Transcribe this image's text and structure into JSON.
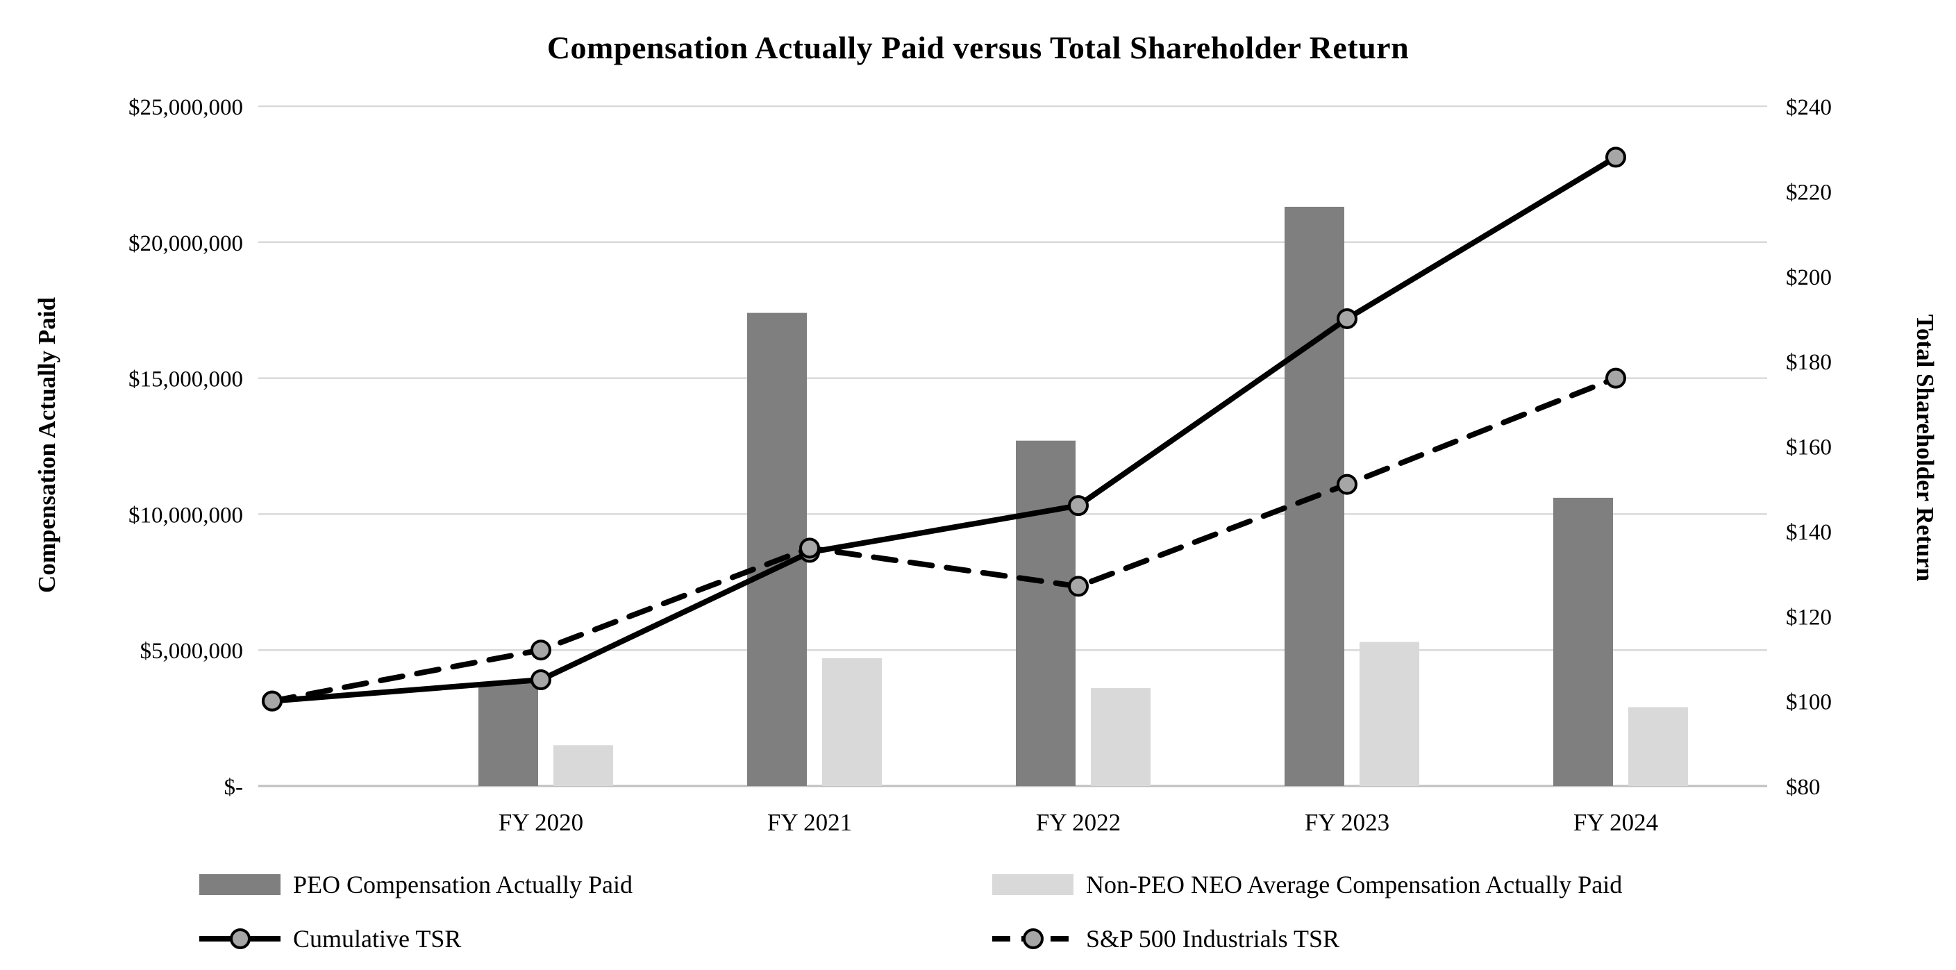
{
  "chart_data": {
    "type": "combo",
    "title": "Compensation Actually Paid versus Total Shareholder Return",
    "categories": [
      "",
      "FY 2020",
      "FY 2021",
      "FY 2022",
      "FY 2023",
      "FY 2024"
    ],
    "bar_series": [
      {
        "name": "PEO Compensation Actually Paid",
        "color": "#7f7f7f",
        "axis": "left",
        "values": [
          null,
          3800000,
          17400000,
          12700000,
          21300000,
          10600000
        ]
      },
      {
        "name": "Non-PEO NEO Average Compensation Actually Paid",
        "color": "#d9d9d9",
        "axis": "left",
        "values": [
          null,
          1500000,
          4700000,
          3600000,
          5300000,
          2900000
        ]
      }
    ],
    "line_series": [
      {
        "name": "Cumulative TSR",
        "style": "solid",
        "color": "#000000",
        "marker_fill": "#a6a6a6",
        "axis": "right",
        "values": [
          100,
          105,
          135,
          146,
          190,
          228
        ]
      },
      {
        "name": "S&P 500 Industrials TSR",
        "style": "dashed",
        "color": "#000000",
        "marker_fill": "#a6a6a6",
        "axis": "right",
        "values": [
          100,
          112,
          136,
          127,
          151,
          176
        ]
      }
    ],
    "left_axis": {
      "title": "Compensation Actually Paid",
      "min": 0,
      "max": 25000000,
      "step": 5000000,
      "tick_labels": [
        "$-",
        "$5,000,000",
        "$10,000,000",
        "$15,000,000",
        "$20,000,000",
        "$25,000,000"
      ]
    },
    "right_axis": {
      "title": "Total Shareholder Return",
      "min": 80,
      "max": 240,
      "step": 20,
      "tick_labels": [
        "$80",
        "$100",
        "$120",
        "$140",
        "$160",
        "$180",
        "$200",
        "$220",
        "$240"
      ]
    },
    "grid": true,
    "legend_position": "bottom"
  },
  "colors": {
    "peo_bar": "#7f7f7f",
    "non_peo_bar": "#d9d9d9",
    "line": "#000000",
    "marker_fill": "#a6a6a6",
    "gridline": "#d9d9d9",
    "axis_line": "#bfbfbf"
  }
}
